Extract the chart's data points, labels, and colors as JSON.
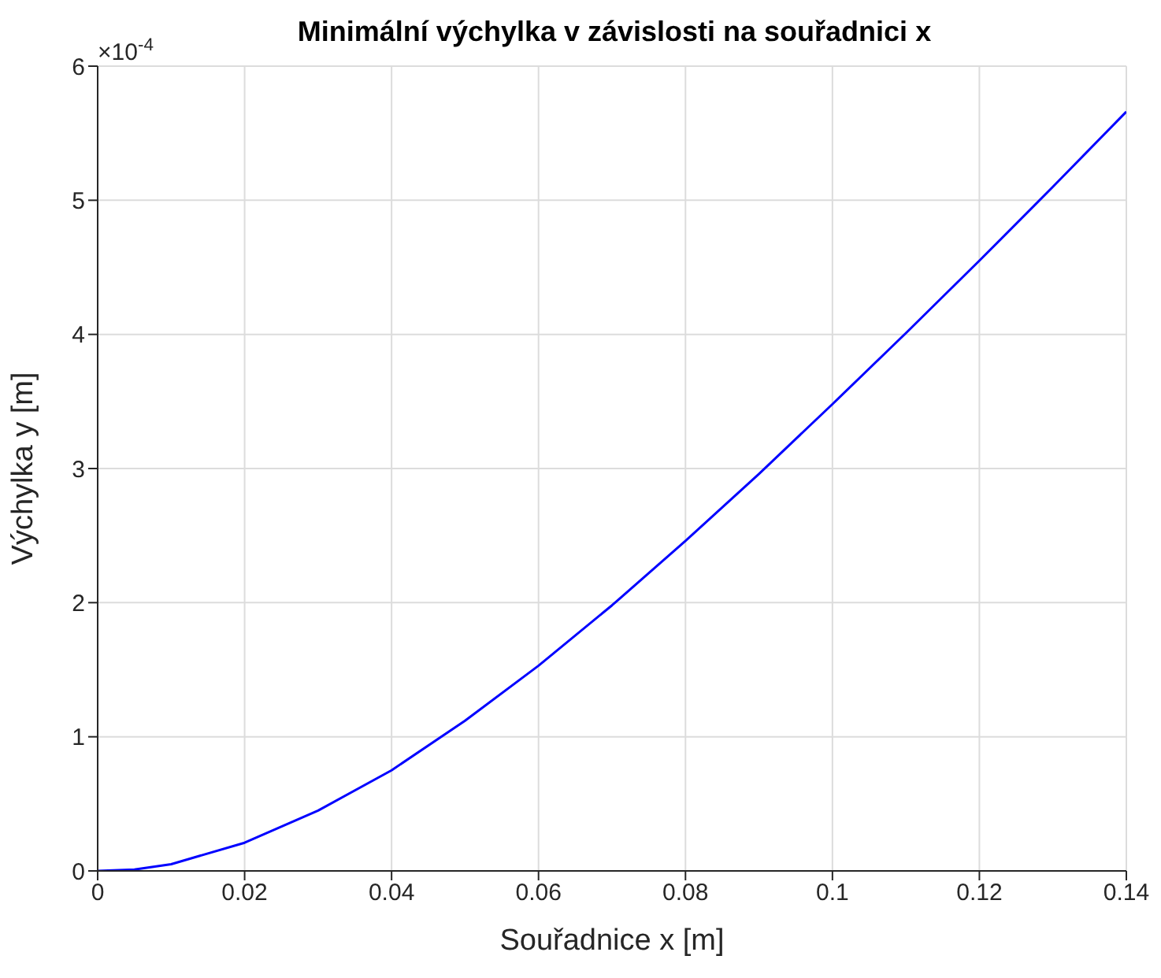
{
  "chart_data": {
    "type": "line",
    "title": "Minimální výchylka v závislosti na souřadnici x",
    "xlabel": "Souřadnice x [m]",
    "ylabel": "Výchylka y [m]",
    "x": [
      0,
      0.005,
      0.01,
      0.02,
      0.03,
      0.04,
      0.05,
      0.06,
      0.07,
      0.08,
      0.09,
      0.1,
      0.11,
      0.12,
      0.13,
      0.14
    ],
    "series": [
      {
        "color": "#0000ff",
        "values": [
          0,
          0.01,
          0.05,
          0.21,
          0.45,
          0.75,
          1.12,
          1.53,
          1.98,
          2.46,
          2.96,
          3.48,
          4.01,
          4.55,
          5.1,
          5.66
        ]
      }
    ],
    "xlim": [
      0,
      0.14
    ],
    "xticks": [
      0,
      0.02,
      0.04,
      0.06,
      0.08,
      0.1,
      0.12,
      0.14
    ],
    "ylim": [
      0,
      6
    ],
    "yticks": [
      0,
      1,
      2,
      3,
      4,
      5,
      6
    ],
    "annotations": [
      "×10$^{-4}$"
    ],
    "grid": true,
    "marker": "none",
    "line_style": "solid",
    "legend": false
  }
}
